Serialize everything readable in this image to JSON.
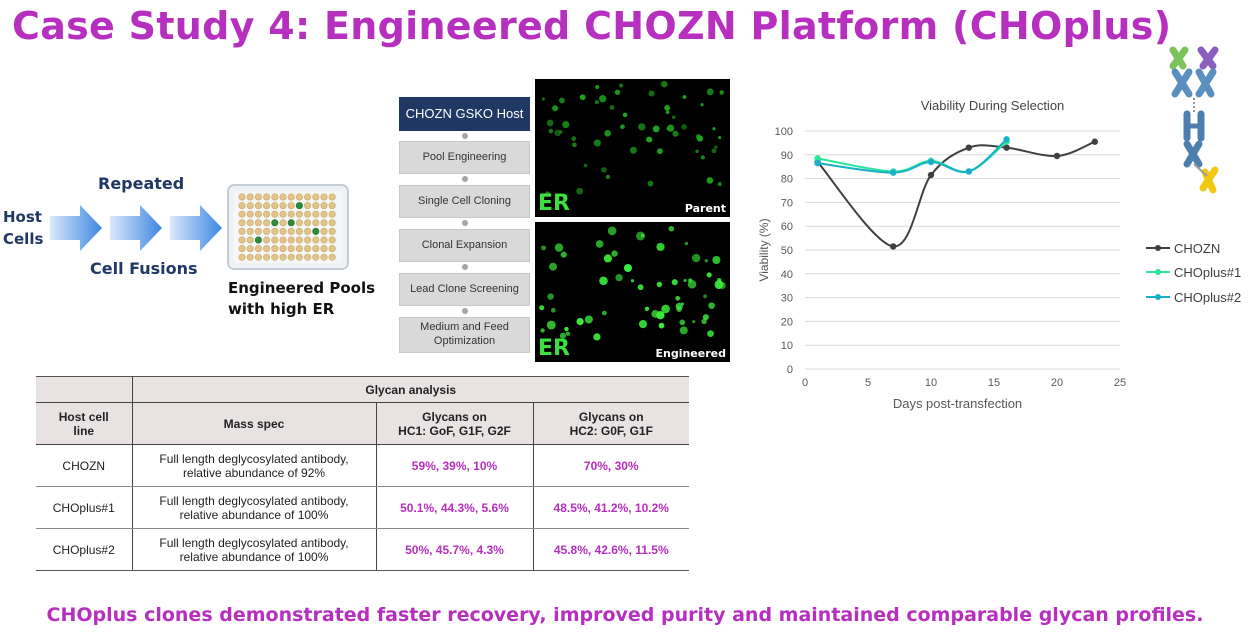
{
  "title": "Case Study 4: Engineered CHOZN Platform (CHOplus)",
  "footer": "CHOplus clones demonstrated faster recovery, improved purity and maintained comparable glycan profiles.",
  "process": {
    "host_cells": "Host\nCells",
    "repeated": "Repeated",
    "cell_fusions": "Cell Fusions",
    "pools_label": "Engineered Pools\nwith high ER"
  },
  "workflow": {
    "steps": [
      "CHOZN GSKO Host",
      "Pool Engineering",
      "Single Cell Cloning",
      "Clonal Expansion",
      "Lead Clone Screening",
      "Medium and Feed\nOptimization"
    ]
  },
  "micrographs": {
    "parent": {
      "er": "ER",
      "caption": "Parent"
    },
    "engineered": {
      "er": "ER",
      "caption": "Engineered"
    }
  },
  "table": {
    "group_header": "Glycan analysis",
    "headers": [
      "Host cell\nline",
      "Mass spec",
      "Glycans on\nHC1: GoF, G1F, G2F",
      "Glycans on\nHC2: G0F, G1F"
    ],
    "rows": [
      {
        "host": "CHOZN",
        "mass_spec": "Full length deglycosylated antibody,\nrelative abundance of 92%",
        "hc1": "59%, 39%, 10%",
        "hc2": "70%, 30%"
      },
      {
        "host": "CHOplus#1",
        "mass_spec": "Full length deglycosylated antibody,\nrelative abundance of 100%",
        "hc1": "50.1%, 44.3%, 5.6%",
        "hc2": "48.5%, 41.2%, 10.2%"
      },
      {
        "host": "CHOplus#2",
        "mass_spec": "Full length deglycosylated antibody,\nrelative abundance of 100%",
        "hc1": "50%, 45.7%, 4.3%",
        "hc2": "45.8%, 42.6%, 11.5%"
      }
    ]
  },
  "chart_data": {
    "type": "line",
    "title": "Viability During Selection",
    "xlabel": "Days post-transfection",
    "ylabel": "Viability (%)",
    "xlim": [
      0,
      25
    ],
    "ylim": [
      0,
      100
    ],
    "xticks": [
      0,
      5,
      10,
      15,
      20,
      25
    ],
    "yticks": [
      0,
      10,
      20,
      30,
      40,
      50,
      60,
      70,
      80,
      90,
      100
    ],
    "legend_position": "right",
    "series": [
      {
        "name": "CHOZN",
        "color": "#404040",
        "x": [
          1,
          7,
          10,
          13,
          16,
          20,
          23
        ],
        "y": [
          87,
          51.5,
          81.5,
          93,
          93,
          89.5,
          95.5
        ]
      },
      {
        "name": "CHOplus#1",
        "color": "#2ee59d",
        "x": [
          1,
          7,
          10,
          13,
          16
        ],
        "y": [
          88.5,
          83,
          87.5,
          83,
          95.5
        ]
      },
      {
        "name": "CHOplus#2",
        "color": "#17b0c8",
        "x": [
          1,
          7,
          10,
          13,
          16
        ],
        "y": [
          86.5,
          82.5,
          87,
          83,
          96.5
        ]
      }
    ]
  },
  "colors": {
    "title": "#b62fbf",
    "navy": "#1f3864",
    "arrow": "#4a90e2"
  }
}
